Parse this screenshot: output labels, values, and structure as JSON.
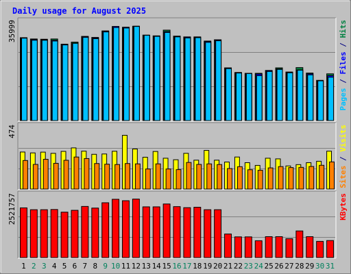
{
  "chart_data": {
    "type": "bar",
    "title": "Daily usage for August 2025",
    "categories": [
      "1",
      "2",
      "3",
      "4",
      "5",
      "6",
      "7",
      "8",
      "9",
      "10",
      "11",
      "12",
      "13",
      "14",
      "15",
      "16",
      "17",
      "18",
      "19",
      "20",
      "21",
      "22",
      "23",
      "24",
      "25",
      "26",
      "27",
      "28",
      "29",
      "30",
      "31"
    ],
    "weekend_days": [
      "2",
      "3",
      "9",
      "10",
      "16",
      "17",
      "23",
      "24",
      "30",
      "31"
    ],
    "panels": [
      {
        "id": "top",
        "ymax_label": "35999",
        "ymax": 35999,
        "legend": [
          {
            "text": "Pages",
            "color": "#00C0FF"
          },
          {
            "text": " / ",
            "color": "#000080"
          },
          {
            "text": "Files",
            "color": "#0000FF"
          },
          {
            "text": " / ",
            "color": "#000080"
          },
          {
            "text": "Hits",
            "color": "#008040"
          }
        ],
        "series": [
          {
            "name": "Hits",
            "color": "#008040",
            "values": [
              32000,
              31500,
              31400,
              31500,
              29500,
              30300,
              32500,
              32100,
              34600,
              36300,
              36000,
              36400,
              33000,
              32700,
              34900,
              32600,
              32300,
              32300,
              30700,
              31200,
              20400,
              18600,
              18300,
              18300,
              19400,
              20400,
              18800,
              20500,
              18400,
              15600,
              18100
            ]
          },
          {
            "name": "Files",
            "color": "#0000FF",
            "values": [
              31900,
              31300,
              31200,
              31000,
              29500,
              29900,
              32400,
              31900,
              34500,
              36300,
              36000,
              36400,
              32900,
              32600,
              34300,
              32500,
              32200,
              32200,
              30500,
              31100,
              20300,
              18600,
              18300,
              18000,
              19300,
              20000,
              18700,
              19600,
              18100,
              15300,
              17400
            ]
          },
          {
            "name": "Pages",
            "color": "#00C0FF",
            "values": [
              31800,
              31000,
              31000,
              30700,
              29200,
              29800,
              32100,
              31600,
              34200,
              35900,
              35700,
              36300,
              32900,
              32500,
              34000,
              32300,
              31900,
              32000,
              30200,
              30800,
              20100,
              18400,
              18200,
              17400,
              19000,
              19800,
              18500,
              19500,
              17700,
              15400,
              16800
            ]
          }
        ]
      },
      {
        "id": "middle",
        "ymax_label": "474",
        "ymax": 474,
        "legend": [
          {
            "text": "Sites",
            "color": "#FF8000"
          },
          {
            "text": " / ",
            "color": "#000080"
          },
          {
            "text": "Visits",
            "color": "#FFFF00"
          }
        ],
        "series": [
          {
            "name": "Visits",
            "color": "#FFFF00",
            "values": [
              344,
              336,
              343,
              332,
              350,
              382,
              352,
              323,
              326,
              351,
              498,
              372,
              296,
              349,
              287,
              273,
              332,
              269,
              359,
              269,
              252,
              298,
              246,
              221,
              287,
              281,
              216,
              228,
              246,
              259,
              352
            ]
          },
          {
            "name": "Sites",
            "color": "#FF8000",
            "values": [
              266,
              230,
              277,
              240,
              268,
              298,
              284,
              238,
              232,
              229,
              238,
              235,
              188,
              235,
              188,
              182,
              248,
              230,
              235,
              229,
              192,
              209,
              181,
              176,
              198,
              210,
              201,
              203,
              211,
              222,
              253
            ]
          }
        ]
      },
      {
        "id": "bottom",
        "ymax_label": "2521757",
        "ymax": 2521757,
        "legend": [
          {
            "text": "KBytes",
            "color": "#FF0000"
          }
        ],
        "series": [
          {
            "name": "KBytes",
            "color": "#FF0000",
            "values": [
              2450000,
              2360000,
              2360000,
              2370000,
              2240000,
              2330000,
              2520000,
              2440000,
              2700000,
              2870000,
              2800000,
              2880000,
              2500000,
              2500000,
              2640000,
              2510000,
              2460000,
              2480000,
              2360000,
              2360000,
              1170000,
              1030000,
              1030000,
              840000,
              1040000,
              1040000,
              940000,
              1320000,
              1040000,
              810000,
              850000
            ]
          }
        ]
      }
    ]
  },
  "colors": {
    "background": "#C0C0C0",
    "plot_background": "#C0C0C0",
    "title": "#0000FF",
    "weekday_label": "#000000",
    "weekend_label": "#00805C",
    "frame_light": "#FFFFFF",
    "frame_dark": "#808080",
    "bar_outline": "#000000",
    "grid": "#808080"
  }
}
